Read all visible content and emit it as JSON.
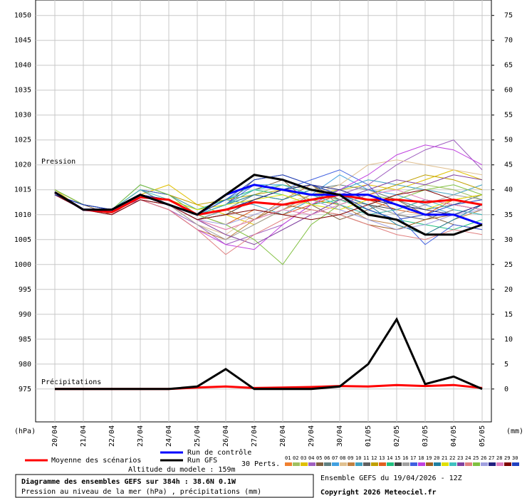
{
  "chart_data": {
    "type": "line",
    "title": "Diagramme des ensembles GEFS sur 384h : 38.6N 0.1W",
    "subtitle": "Pression au niveau de la mer (hPa) , précipitations (mm)",
    "run_info": "Ensemble GEFS du 19/04/2026 - 12Z",
    "copyright": "Copyright 2026 Meteociel.fr",
    "y_label": "Pression",
    "y2_label": "Précipitations",
    "y_unit": "(hPa)",
    "y2_unit": "(mm)",
    "perts_label": "30 Perts.",
    "altitude": "Altitude du modele : 159m",
    "grid": true,
    "ylim": [
      968.4,
      1053.1
    ],
    "yticks": [
      1050,
      1045,
      1040,
      1035,
      1030,
      1025,
      1020,
      1015,
      1010,
      1005,
      1000,
      995,
      990,
      985,
      980,
      975
    ],
    "y2lim": [
      -6.6,
      78.1
    ],
    "y2ticks": [
      75,
      70,
      65,
      60,
      55,
      50,
      45,
      40,
      35,
      30,
      25,
      20,
      15,
      10,
      5,
      0
    ],
    "categories": [
      "20/04",
      "21/04",
      "22/04",
      "23/04",
      "24/04",
      "25/04",
      "26/04",
      "27/04",
      "28/04",
      "29/04",
      "30/04",
      "01/05",
      "02/05",
      "03/05",
      "04/05",
      "05/05"
    ],
    "series": [
      {
        "name": "Moyenne des scénarios",
        "color": "#ff0000",
        "width": 3,
        "values": [
          1014.5,
          1011,
          1010.5,
          1013.5,
          1013,
          1010,
          1011,
          1012.5,
          1012,
          1013,
          1014,
          1013,
          1013,
          1012.5,
          1013,
          1012
        ],
        "precip": [
          0,
          0,
          0,
          0,
          0,
          0.3,
          0.5,
          0.2,
          0.3,
          0.4,
          0.6,
          0.5,
          0.8,
          0.6,
          0.8,
          0.2
        ]
      },
      {
        "name": "Run de contrôle",
        "color": "#0000ff",
        "width": 3,
        "values": [
          1014.5,
          1011,
          1011,
          1014,
          1012,
          1010,
          1014,
          1016,
          1015,
          1014,
          1014,
          1014,
          1012,
          1010,
          1010,
          1008
        ]
      },
      {
        "name": "Run GFS",
        "color": "#000000",
        "width": 3,
        "values": [
          1014.5,
          1011,
          1011,
          1014,
          1012,
          1010,
          1014,
          1018,
          1017,
          1015,
          1014,
          1010,
          1009,
          1006,
          1006,
          1008
        ],
        "precip": [
          0,
          0,
          0,
          0,
          0,
          0.5,
          4,
          0,
          0,
          0,
          0.5,
          5,
          14,
          1,
          2.5,
          0
        ]
      },
      {
        "name": "01",
        "color": "#f08030",
        "width": 1,
        "values": [
          1014,
          1011,
          1010,
          1013,
          1012,
          1009,
          1007,
          1009,
          1011,
          1013,
          1012,
          1010,
          1011,
          1013,
          1012,
          1011
        ]
      },
      {
        "name": "02",
        "color": "#a0c060",
        "width": 1,
        "values": [
          1014,
          1012,
          1011,
          1015,
          1014,
          1011,
          1012,
          1014,
          1016,
          1015,
          1013,
          1012,
          1014,
          1016,
          1015,
          1013
        ]
      },
      {
        "name": "03",
        "color": "#e0c000",
        "width": 1,
        "values": [
          1015,
          1011,
          1010,
          1014,
          1016,
          1012,
          1010,
          1008,
          1011,
          1014,
          1015,
          1016,
          1015,
          1017,
          1019,
          1017
        ]
      },
      {
        "name": "04",
        "color": "#a060c0",
        "width": 1,
        "values": [
          1014,
          1011,
          1011,
          1013,
          1011,
          1008,
          1004,
          1006,
          1008,
          1012,
          1014,
          1016,
          1020,
          1023,
          1025,
          1019
        ]
      },
      {
        "name": "05",
        "color": "#806040",
        "width": 1,
        "values": [
          1014,
          1012,
          1010,
          1014,
          1013,
          1010,
          1012,
          1015,
          1017,
          1012,
          1009,
          1011,
          1013,
          1010,
          1008,
          1007
        ]
      },
      {
        "name": "06",
        "color": "#608080",
        "width": 1,
        "values": [
          1014,
          1011,
          1011,
          1015,
          1012,
          1009,
          1011,
          1014,
          1013,
          1015,
          1016,
          1015,
          1013,
          1011,
          1012,
          1014
        ]
      },
      {
        "name": "07",
        "color": "#40a0e0",
        "width": 1,
        "values": [
          1015,
          1012,
          1011,
          1014,
          1013,
          1010,
          1013,
          1016,
          1016,
          1014,
          1018,
          1015,
          1014,
          1012,
          1010,
          1012
        ]
      },
      {
        "name": "08",
        "color": "#e0c090",
        "width": 1,
        "values": [
          1014,
          1011,
          1010,
          1013,
          1012,
          1008,
          1006,
          1010,
          1012,
          1014,
          1016,
          1020,
          1021,
          1020,
          1019,
          1018
        ]
      },
      {
        "name": "09",
        "color": "#c08040",
        "width": 1,
        "values": [
          1014,
          1011,
          1010,
          1013,
          1011,
          1007,
          1005,
          1009,
          1013,
          1016,
          1012,
          1009,
          1008,
          1006,
          1009,
          1011
        ]
      },
      {
        "name": "10",
        "color": "#40a0c0",
        "width": 1,
        "values": [
          1014,
          1012,
          1011,
          1016,
          1014,
          1011,
          1013,
          1012,
          1010,
          1013,
          1015,
          1017,
          1016,
          1015,
          1014,
          1016
        ]
      },
      {
        "name": "11",
        "color": "#606060",
        "width": 1,
        "values": [
          1014,
          1011,
          1011,
          1014,
          1013,
          1010,
          1012,
          1017,
          1018,
          1016,
          1013,
          1012,
          1010,
          1009,
          1011,
          1010
        ]
      },
      {
        "name": "12",
        "color": "#c0a000",
        "width": 1,
        "values": [
          1015,
          1012,
          1011,
          1015,
          1014,
          1012,
          1013,
          1014,
          1015,
          1013,
          1012,
          1014,
          1016,
          1018,
          1017,
          1015
        ]
      },
      {
        "name": "13",
        "color": "#e06020",
        "width": 1,
        "values": [
          1014,
          1011,
          1010,
          1013,
          1012,
          1010,
          1008,
          1011,
          1010,
          1012,
          1014,
          1013,
          1011,
          1010,
          1013,
          1014
        ]
      },
      {
        "name": "14",
        "color": "#20c080",
        "width": 1,
        "values": [
          1014,
          1012,
          1011,
          1014,
          1013,
          1011,
          1013,
          1015,
          1014,
          1012,
          1013,
          1011,
          1009,
          1008,
          1007,
          1009
        ]
      },
      {
        "name": "15",
        "color": "#404040",
        "width": 1,
        "values": [
          1014,
          1011,
          1010,
          1014,
          1012,
          1009,
          1010,
          1013,
          1015,
          1016,
          1014,
          1012,
          1011,
          1013,
          1012,
          1011
        ]
      },
      {
        "name": "16",
        "color": "#a0a0a0",
        "width": 1,
        "values": [
          1014,
          1011,
          1010,
          1013,
          1012,
          1008,
          1005,
          1008,
          1011,
          1014,
          1013,
          1012,
          1010,
          1012,
          1014,
          1013
        ]
      },
      {
        "name": "17",
        "color": "#4060e0",
        "width": 1,
        "values": [
          1014,
          1012,
          1011,
          1015,
          1014,
          1010,
          1012,
          1016,
          1015,
          1017,
          1019,
          1016,
          1010,
          1004,
          1008,
          1007
        ]
      },
      {
        "name": "18",
        "color": "#c040e0",
        "width": 1,
        "values": [
          1014,
          1011,
          1010,
          1013,
          1011,
          1007,
          1004,
          1003,
          1008,
          1012,
          1015,
          1018,
          1022,
          1024,
          1023,
          1020
        ]
      },
      {
        "name": "19",
        "color": "#a06020",
        "width": 1,
        "values": [
          1014,
          1011,
          1011,
          1014,
          1013,
          1010,
          1011,
          1009,
          1012,
          1011,
          1010,
          1008,
          1007,
          1009,
          1010,
          1008
        ]
      },
      {
        "name": "20",
        "color": "#2080a0",
        "width": 1,
        "values": [
          1014,
          1012,
          1011,
          1014,
          1013,
          1010,
          1012,
          1014,
          1013,
          1015,
          1014,
          1012,
          1008,
          1006,
          1009,
          1012
        ]
      },
      {
        "name": "21",
        "color": "#e0e000",
        "width": 1,
        "values": [
          1014,
          1011,
          1010,
          1014,
          1013,
          1011,
          1012,
          1013,
          1014,
          1012,
          1011,
          1013,
          1012,
          1011,
          1013,
          1014
        ]
      },
      {
        "name": "22",
        "color": "#40c0c0",
        "width": 1,
        "values": [
          1014,
          1011,
          1011,
          1015,
          1013,
          1010,
          1012,
          1015,
          1016,
          1014,
          1012,
          1010,
          1011,
          1013,
          1011,
          1010
        ]
      },
      {
        "name": "23",
        "color": "#8040a0",
        "width": 1,
        "values": [
          1014,
          1012,
          1011,
          1014,
          1012,
          1009,
          1006,
          1004,
          1007,
          1010,
          1013,
          1015,
          1017,
          1016,
          1018,
          1017
        ]
      },
      {
        "name": "24",
        "color": "#e08080",
        "width": 1,
        "values": [
          1014,
          1011,
          1010,
          1013,
          1011,
          1007,
          1002,
          1006,
          1009,
          1011,
          1010,
          1008,
          1006,
          1005,
          1007,
          1006
        ]
      },
      {
        "name": "25",
        "color": "#80c040",
        "width": 1,
        "values": [
          1015,
          1012,
          1011,
          1016,
          1014,
          1010,
          1008,
          1005,
          1000,
          1008,
          1012,
          1014,
          1013,
          1015,
          1016,
          1014
        ]
      },
      {
        "name": "26",
        "color": "#a0a0e0",
        "width": 1,
        "values": [
          1014,
          1011,
          1010,
          1013,
          1012,
          1009,
          1008,
          1010,
          1012,
          1013,
          1011,
          1009,
          1007,
          1008,
          1010,
          1011
        ]
      },
      {
        "name": "27",
        "color": "#202080",
        "width": 1,
        "values": [
          1014,
          1012,
          1011,
          1014,
          1013,
          1010,
          1011,
          1013,
          1015,
          1016,
          1015,
          1013,
          1012,
          1011,
          1010,
          1012
        ]
      },
      {
        "name": "28",
        "color": "#e080c0",
        "width": 1,
        "values": [
          1014,
          1011,
          1010,
          1014,
          1012,
          1009,
          1007,
          1009,
          1011,
          1010,
          1012,
          1014,
          1015,
          1013,
          1012,
          1011
        ]
      },
      {
        "name": "29",
        "color": "#800000",
        "width": 1,
        "values": [
          1014,
          1011,
          1010,
          1013,
          1012,
          1009,
          1010,
          1011,
          1010,
          1009,
          1010,
          1012,
          1014,
          1015,
          1013,
          1012
        ]
      },
      {
        "name": "30",
        "color": "#2040c0",
        "width": 1,
        "values": [
          1014,
          1012,
          1011,
          1014,
          1013,
          1010,
          1013,
          1017,
          1018,
          1016,
          1014,
          1011,
          1009,
          1010,
          1012,
          1013
        ]
      }
    ]
  }
}
